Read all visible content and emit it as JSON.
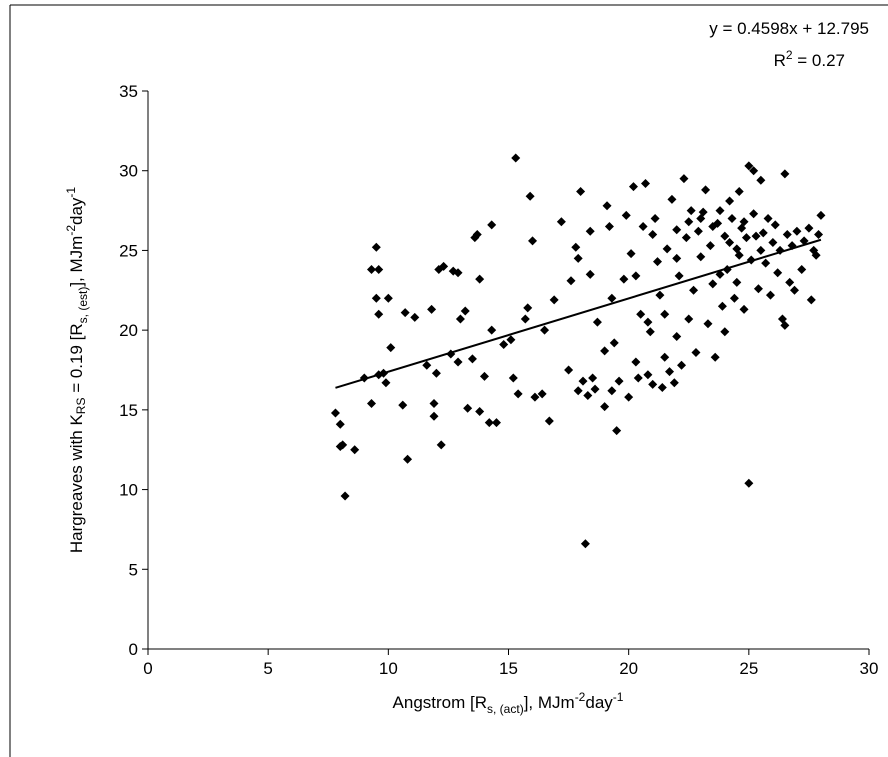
{
  "chart_data": {
    "type": "scatter",
    "x_label": [
      "Angstrom [R",
      "s, (act)",
      "], MJm",
      "-2",
      "day",
      "-1"
    ],
    "y_label": [
      "Hargreaves with K",
      "RS",
      " = 0.19 [R",
      "s, (est)",
      "], MJm",
      "-2",
      "day",
      "-1"
    ],
    "equation": [
      "y = 0.4598x + 12.795",
      "R",
      "2",
      " = 0.27"
    ],
    "color": "#000000",
    "xlim": [
      0,
      30
    ],
    "xticks": [
      0,
      5,
      10,
      15,
      20,
      25,
      30
    ],
    "ylim": [
      0,
      35
    ],
    "yticks": [
      0,
      5,
      10,
      15,
      20,
      25,
      30,
      35
    ],
    "x": [
      7.8,
      8,
      8,
      8.1,
      8.2,
      8.6,
      9,
      9.3,
      9.3,
      9.5,
      9.5,
      9.6,
      9.6,
      9.6,
      9.8,
      9.9,
      10,
      10.1,
      10.6,
      10.7,
      10.8,
      11.1,
      11.6,
      11.8,
      11.9,
      11.9,
      12,
      12.1,
      12.2,
      12.3,
      12.6,
      12.7,
      12.9,
      12.9,
      13,
      13.2,
      13.3,
      13.5,
      13.6,
      13.7,
      13.8,
      13.8,
      14,
      14.2,
      14.3,
      14.3,
      14.5,
      14.8,
      15.1,
      15.2,
      15.3,
      15.4,
      15.7,
      15.8,
      15.9,
      16,
      16.1,
      16.4,
      16.5,
      16.7,
      16.9,
      17.2,
      17.5,
      17.6,
      17.8,
      17.9,
      17.9,
      18,
      18.1,
      18.2,
      18.3,
      18.4,
      18.4,
      18.5,
      18.6,
      18.7,
      19,
      19,
      19.1,
      19.2,
      19.3,
      19.3,
      19.4,
      19.5,
      19.6,
      19.8,
      19.9,
      20,
      20.1,
      20.2,
      20.3,
      20.3,
      20.4,
      20.5,
      20.6,
      20.7,
      20.8,
      20.9,
      21,
      21.1,
      21.2,
      21.3,
      21.4,
      21.5,
      21.6,
      21.7,
      21.8,
      21.9,
      22,
      22,
      22.1,
      22.2,
      22.3,
      22.4,
      22.5,
      22.6,
      22.7,
      22.8,
      22.9,
      23,
      23.1,
      23.2,
      23.3,
      23.4,
      23.5,
      23.6,
      23.7,
      23.8,
      23.9,
      24,
      24,
      24.1,
      24.2,
      24.3,
      24.4,
      24.5,
      24.6,
      24.6,
      24.7,
      24.8,
      24.9,
      25,
      25,
      25.1,
      25.2,
      25.2,
      25.3,
      25.4,
      25.5,
      25.6,
      25.7,
      25.8,
      25.9,
      26,
      26.1,
      26.2,
      26.3,
      26.4,
      26.5,
      26.5,
      26.6,
      26.7,
      26.8,
      26.9,
      27,
      27.2,
      27.3,
      27.5,
      27.6,
      27.7,
      27.8,
      27.9,
      28,
      23,
      23.5,
      24.2,
      24.8,
      25.5,
      22.5,
      21,
      21.5,
      20.8,
      22,
      23.8,
      24.5
    ],
    "values": [
      14.8,
      14.1,
      12.7,
      12.8,
      9.6,
      12.5,
      17,
      15.4,
      23.8,
      25.2,
      22,
      23.8,
      17.2,
      21,
      17.3,
      16.7,
      22,
      18.9,
      15.3,
      21.1,
      11.9,
      20.8,
      17.8,
      21.3,
      15.4,
      14.6,
      17.3,
      23.8,
      12.8,
      24,
      18.5,
      23.7,
      23.6,
      18,
      20.7,
      21.2,
      15.1,
      18.2,
      25.8,
      26,
      14.9,
      23.2,
      17.1,
      14.2,
      26.6,
      20,
      14.2,
      19.1,
      19.4,
      17,
      30.8,
      16,
      20.7,
      21.4,
      28.4,
      25.6,
      15.8,
      16,
      20,
      14.3,
      21.9,
      26.8,
      17.5,
      23.1,
      25.2,
      24.5,
      16.2,
      28.7,
      16.8,
      6.6,
      15.9,
      23.5,
      26.2,
      17,
      16.3,
      20.5,
      18.7,
      15.2,
      27.8,
      26.5,
      22,
      16.2,
      19.2,
      13.7,
      16.8,
      23.2,
      27.2,
      15.8,
      24.8,
      29,
      23.4,
      18,
      17,
      21,
      26.5,
      29.2,
      17.2,
      19.9,
      16.6,
      27,
      24.3,
      22.2,
      16.4,
      18.3,
      25.1,
      17.4,
      28.2,
      16.7,
      19.6,
      26.3,
      23.4,
      17.8,
      29.5,
      25.8,
      20.7,
      27.5,
      22.5,
      18.6,
      26.2,
      24.6,
      27.4,
      28.8,
      20.4,
      25.3,
      22.9,
      18.3,
      26.7,
      27.5,
      21.5,
      25.9,
      19.9,
      23.8,
      28.1,
      27,
      22,
      25.1,
      28.7,
      24.7,
      26.4,
      21.3,
      25.8,
      30.3,
      10.4,
      24.4,
      27.3,
      30,
      25.9,
      22.6,
      29.4,
      26.1,
      24.2,
      27,
      22.2,
      25.5,
      26.6,
      23.6,
      25,
      20.7,
      29.8,
      20.3,
      26,
      23,
      25.3,
      22.5,
      26.2,
      23.8,
      25.6,
      26.4,
      21.9,
      25,
      24.7,
      26,
      27.2,
      27,
      26.5,
      25.5,
      26.8,
      25,
      26.8,
      26,
      21,
      20.5,
      24.5,
      23.5,
      23
    ],
    "trendline": {
      "x": [
        7.8,
        28
      ],
      "values": [
        16.38,
        25.67
      ]
    }
  }
}
